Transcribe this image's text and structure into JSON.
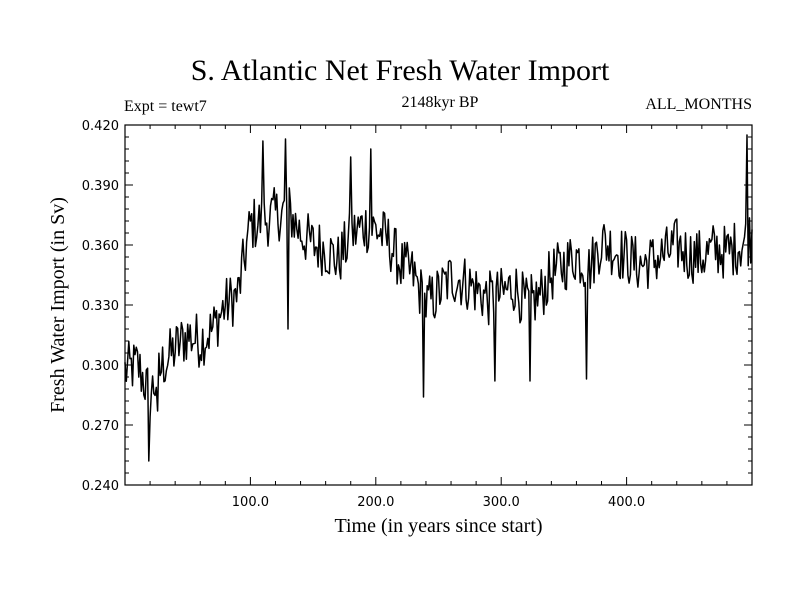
{
  "chart_data": {
    "type": "line",
    "title": "S. Atlantic Net Fresh Water Import",
    "subtitle_left": "Expt = tewt7",
    "subtitle_center": "2148kyr BP",
    "subtitle_right": "ALL_MONTHS",
    "xlabel": "Time (in years since start)",
    "ylabel": "Fresh Water Import (in Sv)",
    "xlim": [
      0,
      500
    ],
    "ylim": [
      0.24,
      0.42
    ],
    "x_ticks": [
      100,
      200,
      300,
      400
    ],
    "x_tick_labels": [
      "100.0",
      "200.0",
      "300.0",
      "400.0"
    ],
    "y_ticks": [
      0.24,
      0.27,
      0.3,
      0.33,
      0.36,
      0.39,
      0.42
    ],
    "y_tick_labels": [
      "0.240",
      "0.270",
      "0.300",
      "0.330",
      "0.360",
      "0.390",
      "0.420"
    ],
    "series": [
      {
        "name": "Net Fresh Water Import",
        "x": [
          0,
          10,
          20,
          30,
          40,
          50,
          60,
          70,
          80,
          90,
          100,
          110,
          120,
          130,
          140,
          150,
          160,
          170,
          180,
          190,
          200,
          210,
          220,
          230,
          240,
          250,
          260,
          270,
          280,
          290,
          300,
          310,
          320,
          330,
          340,
          350,
          360,
          370,
          380,
          390,
          400,
          410,
          420,
          430,
          440,
          450,
          460,
          470,
          480,
          490,
          500
        ],
        "y": [
          0.297,
          0.3,
          0.285,
          0.3,
          0.308,
          0.315,
          0.312,
          0.318,
          0.33,
          0.335,
          0.37,
          0.372,
          0.375,
          0.378,
          0.366,
          0.36,
          0.358,
          0.352,
          0.364,
          0.37,
          0.368,
          0.362,
          0.35,
          0.345,
          0.33,
          0.336,
          0.344,
          0.342,
          0.338,
          0.333,
          0.335,
          0.34,
          0.33,
          0.334,
          0.345,
          0.35,
          0.355,
          0.348,
          0.362,
          0.358,
          0.354,
          0.35,
          0.352,
          0.355,
          0.36,
          0.355,
          0.354,
          0.358,
          0.356,
          0.36,
          0.365
        ],
        "noise_amplitude": 0.014,
        "samples": 500,
        "extremes": [
          {
            "x": 19,
            "y": 0.252
          },
          {
            "x": 26,
            "y": 0.277
          },
          {
            "x": 110,
            "y": 0.412
          },
          {
            "x": 128,
            "y": 0.413
          },
          {
            "x": 130,
            "y": 0.318
          },
          {
            "x": 180,
            "y": 0.404
          },
          {
            "x": 196,
            "y": 0.408
          },
          {
            "x": 238,
            "y": 0.284
          },
          {
            "x": 295,
            "y": 0.292
          },
          {
            "x": 323,
            "y": 0.292
          },
          {
            "x": 368,
            "y": 0.293
          },
          {
            "x": 496,
            "y": 0.415
          }
        ],
        "color": "#000000"
      }
    ]
  }
}
